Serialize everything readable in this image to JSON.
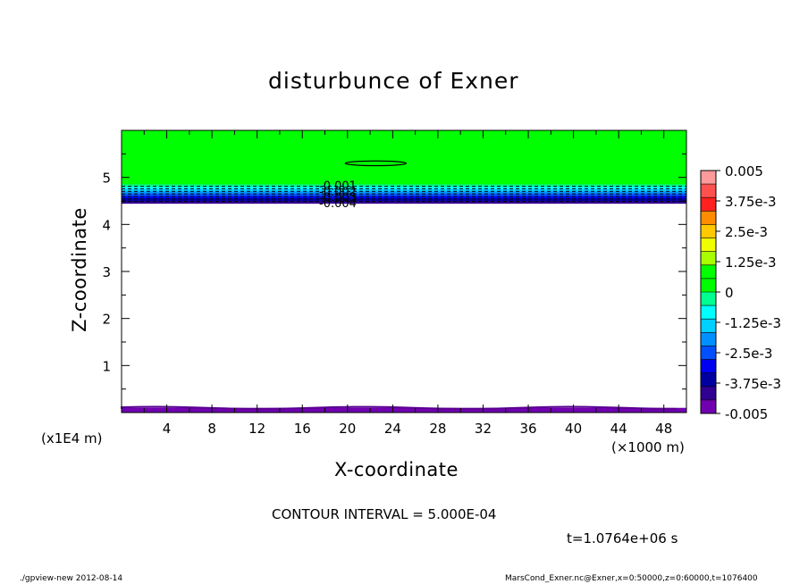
{
  "chart_data": {
    "type": "heatmap",
    "title": "disturbunce of Exner",
    "xlabel": "X-coordinate",
    "ylabel": "Z-coordinate",
    "x_unit": "(×1000 m)",
    "y_unit": "(x1E4 m)",
    "xlim": [
      0,
      50
    ],
    "ylim": [
      0,
      6
    ],
    "xticks": [
      4,
      8,
      12,
      16,
      20,
      24,
      28,
      32,
      36,
      40,
      44,
      48
    ],
    "yticks": [
      1,
      2,
      3,
      4,
      5
    ],
    "colorbar": {
      "labels": [
        "0.005",
        "3.75e-3",
        "2.5e-3",
        "1.25e-3",
        "0",
        "-1.25e-3",
        "-2.5e-3",
        "-3.75e-3",
        "-0.005"
      ],
      "colors": [
        "#ff9a9a",
        "#ff5050",
        "#ff2020",
        "#ff8c00",
        "#ffc800",
        "#f0ff00",
        "#a8ff00",
        "#00ff00",
        "#00ff00",
        "#00ff90",
        "#00ffff",
        "#00d0ff",
        "#0090ff",
        "#0050ff",
        "#0000f0",
        "#0000a0",
        "#300090",
        "#7000b0"
      ],
      "range": [
        -0.005,
        0.005
      ]
    },
    "regions": [
      {
        "name": "green-layer",
        "z_from": 4.85,
        "z_to": 6.0,
        "color": "#00ff00"
      },
      {
        "name": "gradient-layer",
        "z_from": 4.45,
        "z_to": 4.85,
        "color": "#0050ff"
      },
      {
        "name": "white-interior",
        "z_from": 0.1,
        "z_to": 4.45,
        "color": "#ffffff"
      },
      {
        "name": "bottom-layer",
        "z_from": 0.0,
        "z_to": 0.1,
        "color": "#7000b0"
      }
    ],
    "contour_labels": [
      "-0.001",
      "-0.002",
      "-0.003",
      "-0.004"
    ],
    "closed_contour": {
      "x_center": 22.5,
      "z_center": 5.3,
      "x_halfwidth": 2.7,
      "z_halfwidth": 0.05
    }
  },
  "footer": {
    "contour_interval": "CONTOUR INTERVAL = 5.000E-04",
    "time": "t=1.0764e+06 s",
    "program": "./gpview-new  2012-08-14",
    "source": "MarsCond_Exner.nc@Exner,x=0:50000,z=0:60000,t=1076400"
  }
}
